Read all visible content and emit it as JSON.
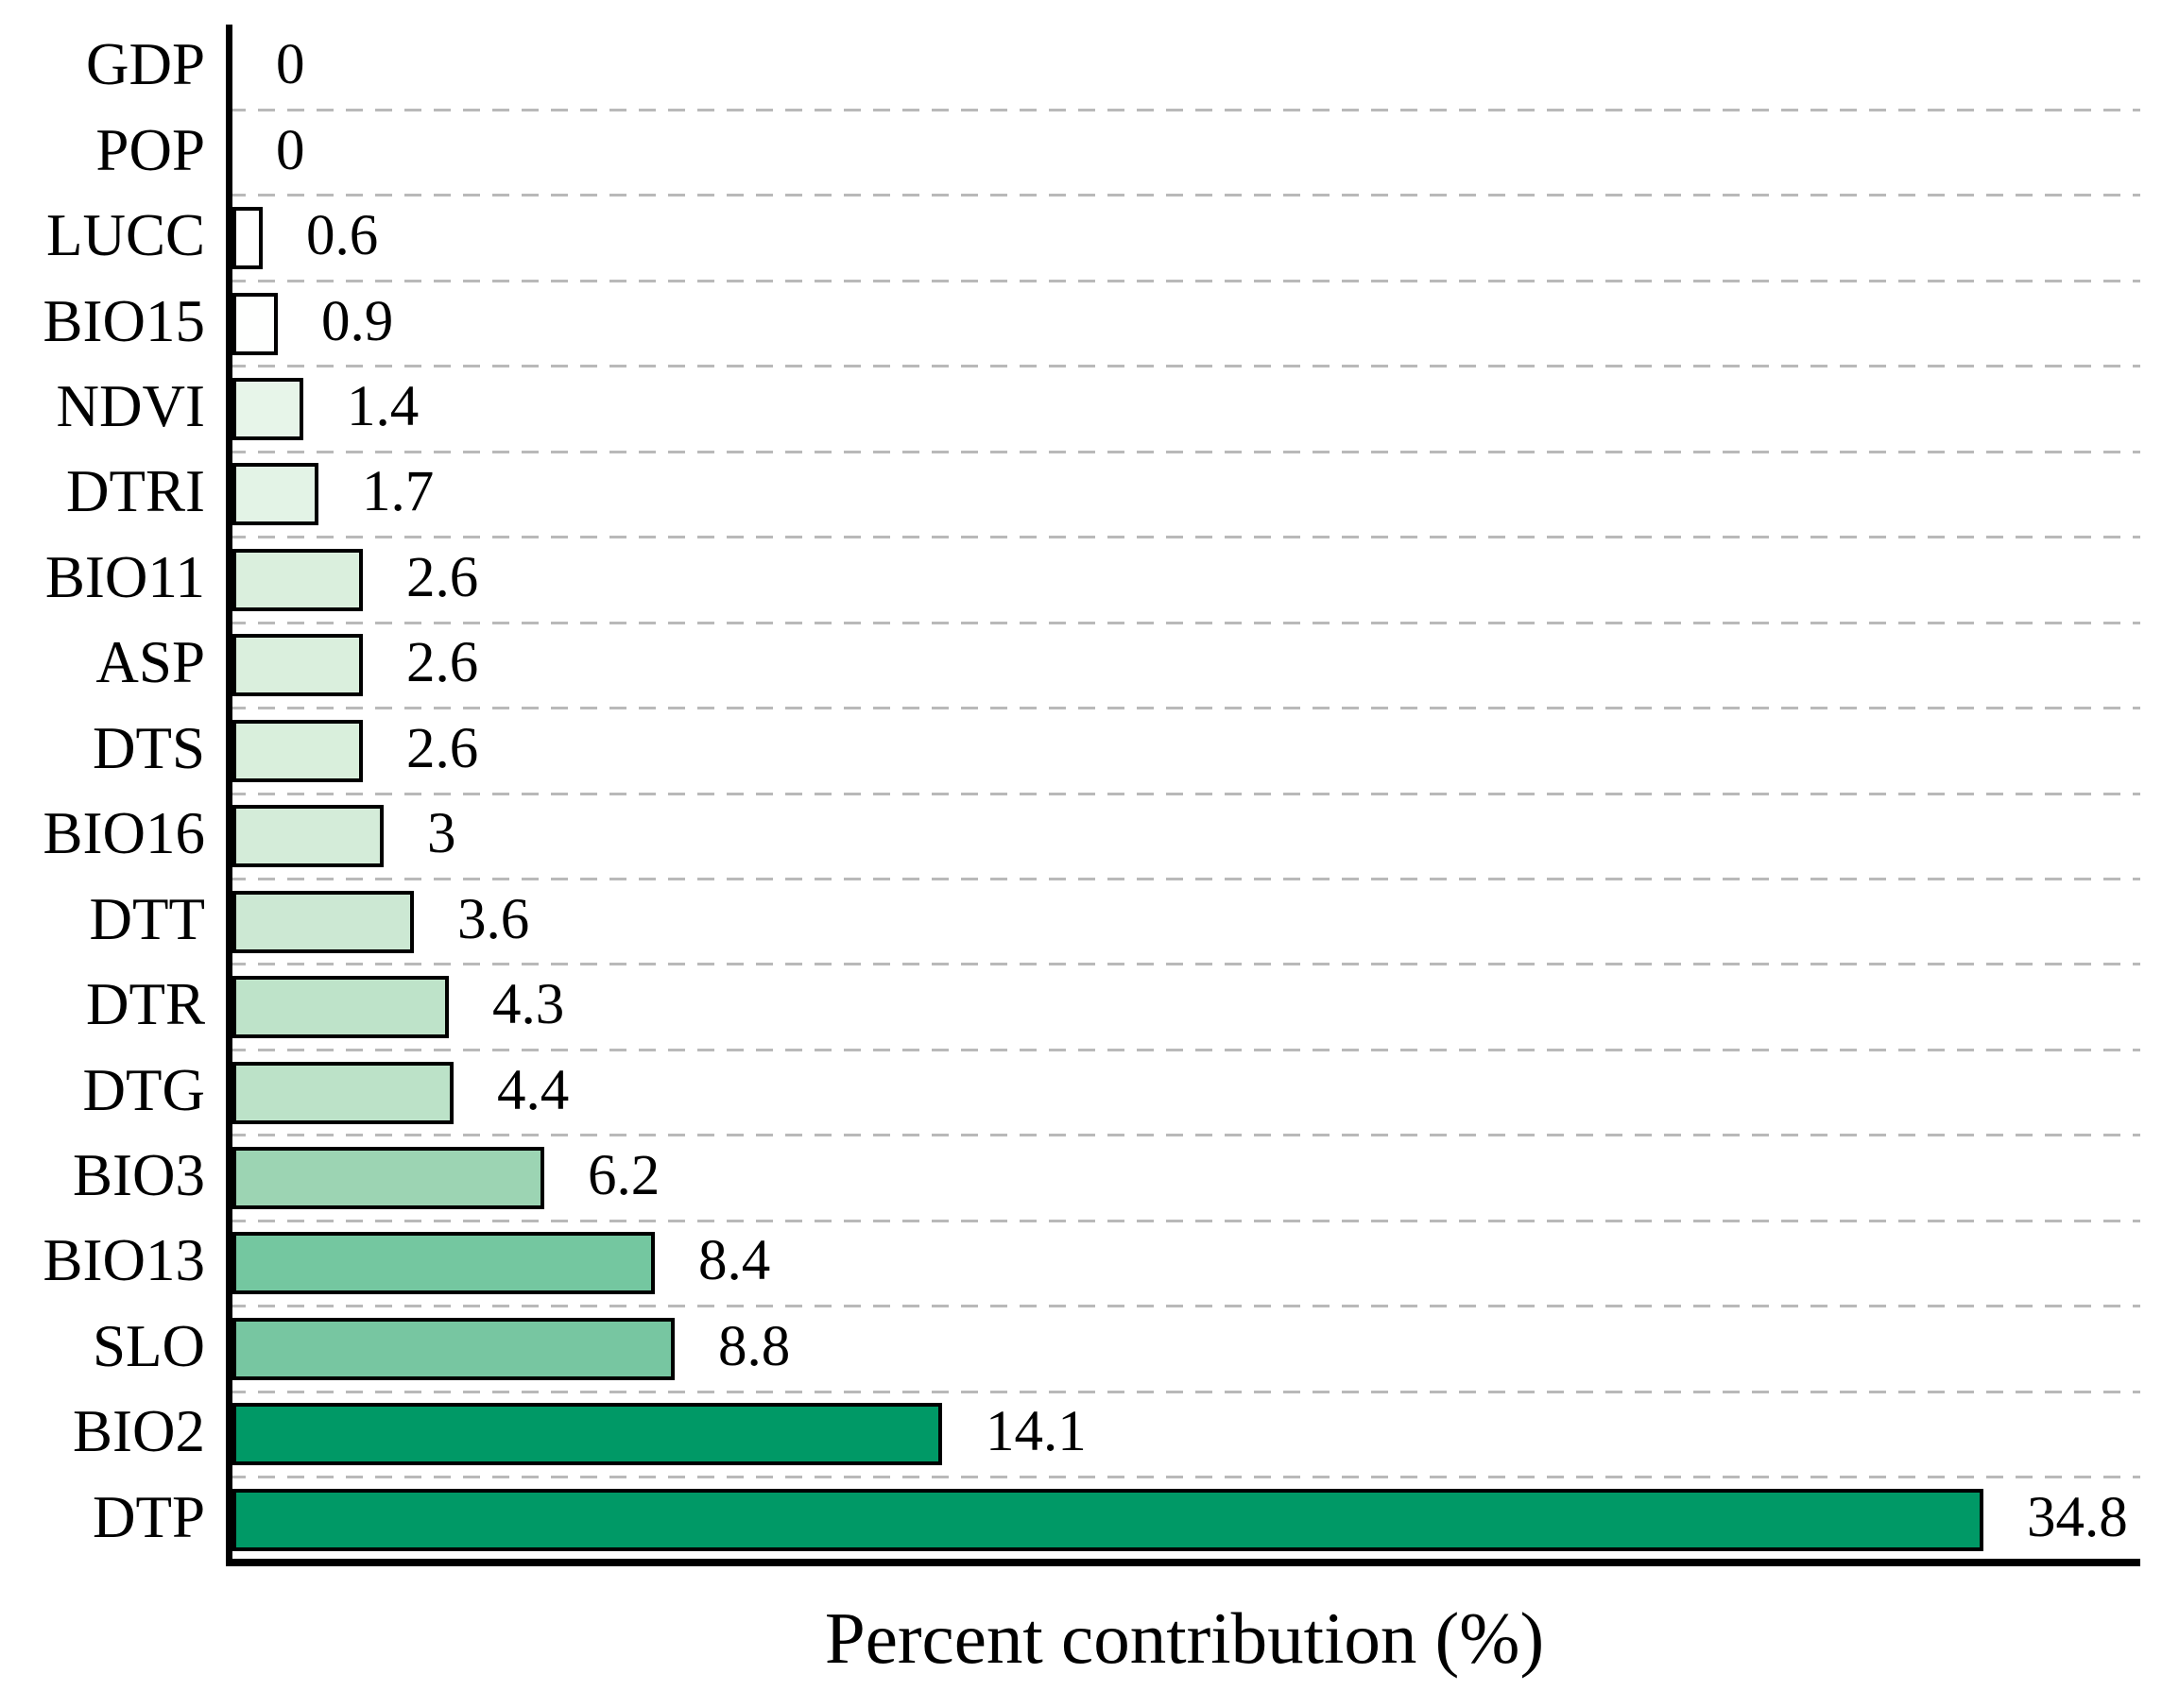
{
  "chart_data": {
    "type": "bar",
    "orientation": "horizontal",
    "title": "",
    "xlabel": "Percent contribution (%)",
    "ylabel": "",
    "xlim": [
      0,
      38
    ],
    "grid": "dashed horizontal separators between category rows",
    "legend": "none",
    "categories": [
      "GDP",
      "POP",
      "LUCC",
      "BIO15",
      "NDVI",
      "DTRI",
      "BIO11",
      "ASP",
      "DTS",
      "BIO16",
      "DTT",
      "DTR",
      "DTG",
      "BIO3",
      "BIO13",
      "SLO",
      "BIO2",
      "DTP"
    ],
    "values": [
      0,
      0,
      0.6,
      0.9,
      1.4,
      1.7,
      2.6,
      2.6,
      2.6,
      3,
      3.6,
      4.3,
      4.4,
      6.2,
      8.4,
      8.8,
      14.1,
      34.8
    ],
    "value_labels": [
      "0",
      "0",
      "0.6",
      "0.9",
      "1.4",
      "1.7",
      "2.6",
      "2.6",
      "2.6",
      "3",
      "3.6",
      "4.3",
      "4.4",
      "6.2",
      "8.4",
      "8.8",
      "14.1",
      "34.8"
    ],
    "bar_colors": [
      "none",
      "none",
      "#ffffff",
      "#fefffe",
      "#e7f5e9",
      "#e3f3e6",
      "#daefdd",
      "#daefdd",
      "#d9efdc",
      "#d4ecd9",
      "#cce8d3",
      "#bee3c9",
      "#bce2c8",
      "#9cd4b3",
      "#74c7a0",
      "#77c6a1",
      "#009966",
      "#009966"
    ]
  },
  "style": {
    "bar_border_color": "#000000",
    "axis_color": "#000000",
    "gridline_color": "#b9b9b9",
    "text_color": "#000000",
    "background_color": "#ffffff",
    "accent_dark_green": "#009966"
  }
}
